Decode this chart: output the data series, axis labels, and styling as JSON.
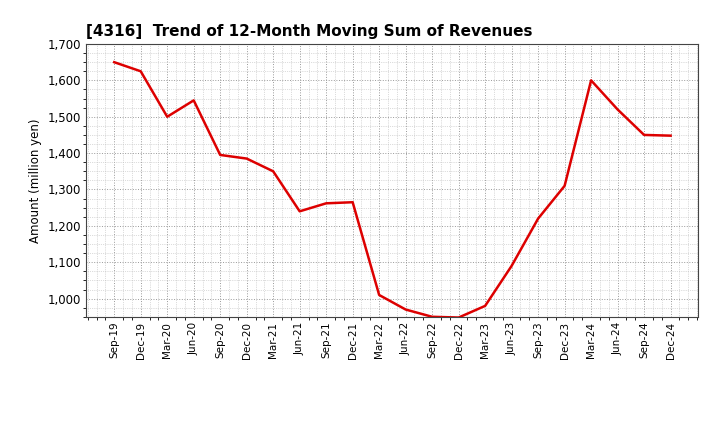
{
  "title": "[4316]  Trend of 12-Month Moving Sum of Revenues",
  "ylabel": "Amount (million yen)",
  "line_color": "#dd0000",
  "background_color": "#ffffff",
  "grid_color": "#999999",
  "labels": [
    "Sep-19",
    "Dec-19",
    "Mar-20",
    "Jun-20",
    "Sep-20",
    "Dec-20",
    "Mar-21",
    "Jun-21",
    "Sep-21",
    "Dec-21",
    "Mar-22",
    "Jun-22",
    "Sep-22",
    "Dec-22",
    "Mar-23",
    "Jun-23",
    "Sep-23",
    "Dec-23",
    "Mar-24",
    "Jun-24",
    "Sep-24",
    "Dec-24"
  ],
  "values": [
    1650,
    1625,
    1500,
    1545,
    1395,
    1385,
    1350,
    1240,
    1262,
    1265,
    1010,
    970,
    950,
    948,
    980,
    1090,
    1220,
    1310,
    1600,
    1520,
    1450,
    1448
  ],
  "ylim_min": 950,
  "ylim_max": 1700,
  "ytick_min": 1000,
  "ytick_max": 1700,
  "ytick_interval": 100
}
